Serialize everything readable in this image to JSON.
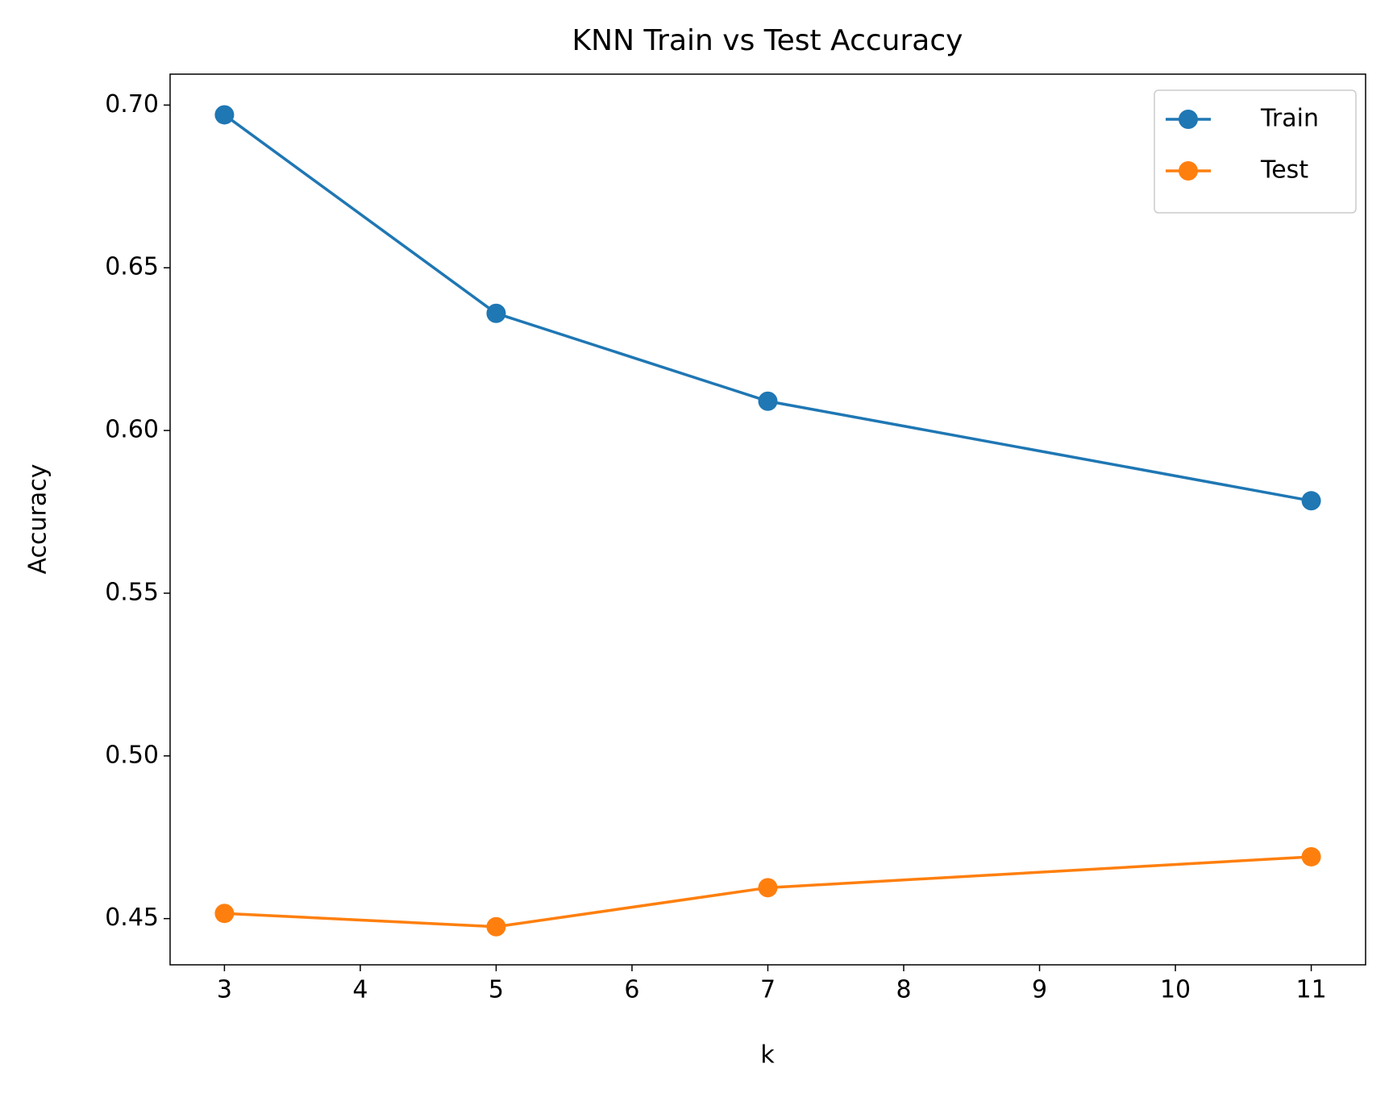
{
  "chart_data": {
    "type": "line",
    "title": "KNN Train vs Test Accuracy",
    "x_label": "k",
    "y_label": "Accuracy",
    "x": [
      3,
      5,
      7,
      11
    ],
    "series": [
      {
        "name": "Train",
        "color": "#1f77b4",
        "values": [
          0.697,
          0.636,
          0.609,
          0.5784
        ]
      },
      {
        "name": "Test",
        "color": "#ff7f0e",
        "values": [
          0.4516,
          0.4475,
          0.4595,
          0.469
        ]
      }
    ],
    "xlim": [
      2.6,
      11.4
    ],
    "ylim": [
      0.4358,
      0.7095
    ],
    "xticks": [
      3,
      4,
      5,
      6,
      7,
      8,
      9,
      10,
      11
    ],
    "yticks": [
      {
        "value": 0.45,
        "label": "0.45"
      },
      {
        "value": 0.5,
        "label": "0.50"
      },
      {
        "value": 0.55,
        "label": "0.55"
      },
      {
        "value": 0.6,
        "label": "0.60"
      },
      {
        "value": 0.65,
        "label": "0.65"
      },
      {
        "value": 0.7,
        "label": "0.70"
      }
    ],
    "legend": "upper right",
    "grid": false
  }
}
